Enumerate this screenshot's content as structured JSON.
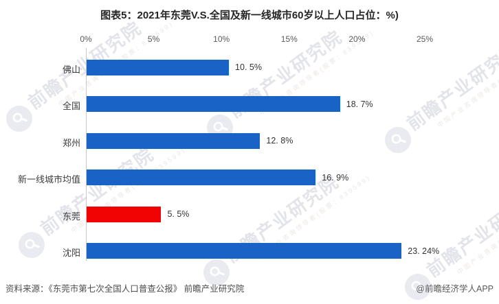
{
  "title": "图表5：2021年东莞V.S.全国及新一线城市60岁以上人口占位：%)",
  "chart_data": {
    "type": "bar",
    "orientation": "horizontal",
    "title": "图表5：2021年东莞V.S.全国及新一线城市60岁以上人口占位：%)",
    "categories": [
      "佛山",
      "全国",
      "郑州",
      "新一线城市均值",
      "东莞",
      "沈阳"
    ],
    "values": [
      10.5,
      18.7,
      12.8,
      16.9,
      5.5,
      23.24
    ],
    "value_labels": [
      "10. 5%",
      "18. 7%",
      "12. 8%",
      "16. 9%",
      "5. 5%",
      "23. 24%"
    ],
    "bar_colors": [
      "#1962c6",
      "#1962c6",
      "#1962c6",
      "#1962c6",
      "#f20303",
      "#1962c6"
    ],
    "highlight_category": "东莞",
    "x_ticks": [
      "0%",
      "5%",
      "10%",
      "15%",
      "20%",
      "25%"
    ],
    "xlim": [
      0,
      25
    ],
    "xlabel": "",
    "ylabel": "",
    "grid": false,
    "legend": false
  },
  "watermark": {
    "brand_text": "前瞻产业研究院",
    "sub_text": "中国产业咨询领导者(股票：839599)",
    "logo": "qianzhan-magnifier-logo",
    "text_color": "#e3e4ea"
  },
  "footer": {
    "source": "资料来源：《东莞市第七次全国人口普查公报》 前瞻产业研究院",
    "credit": "@前瞻经济学人APP"
  },
  "colors": {
    "bar_blue": "#1962c6",
    "bar_red": "#f20303",
    "axis_line": "#c9c9c9",
    "tick_text": "#595959",
    "category_text": "#3d3d3d",
    "title_text": "#262626",
    "footer_text": "#4d4d4d"
  }
}
